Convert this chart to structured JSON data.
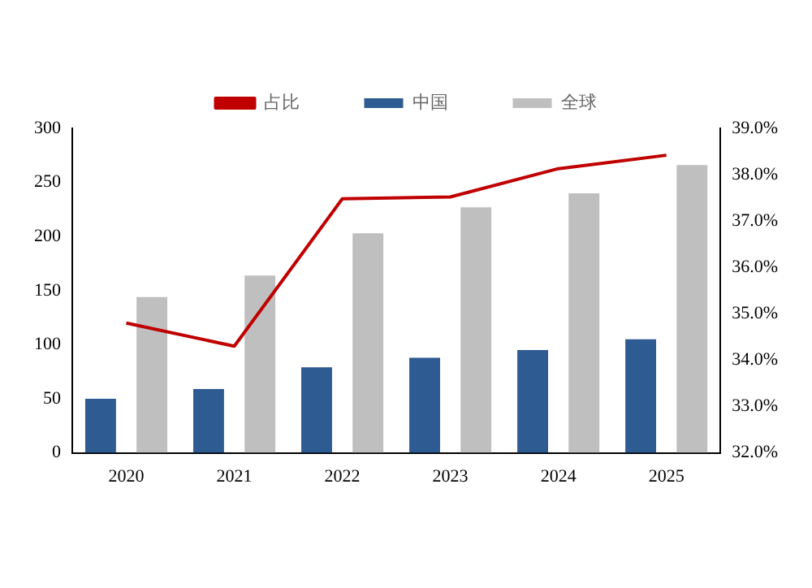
{
  "chart_data": {
    "type": "bar",
    "categories": [
      "2020",
      "2021",
      "2022",
      "2023",
      "2024",
      "2025"
    ],
    "series": [
      {
        "name": "中国",
        "color": "#2f5b93",
        "values": [
          50,
          59,
          79,
          88,
          95,
          105
        ]
      },
      {
        "name": "全球",
        "color": "#bfbfbf",
        "values": [
          144,
          164,
          203,
          227,
          240,
          266
        ]
      },
      {
        "name": "占比",
        "type": "line",
        "axis": "y2",
        "color": "#c00000",
        "values": [
          34.8,
          34.3,
          37.48,
          37.52,
          38.13,
          38.42
        ]
      }
    ],
    "ylim": [
      0,
      300
    ],
    "yticks": [
      0,
      50,
      100,
      150,
      200,
      250,
      300
    ],
    "y2lim": [
      32,
      39
    ],
    "y2ticks": [
      {
        "value": 32,
        "label": "32.0%"
      },
      {
        "value": 33,
        "label": "33.0%"
      },
      {
        "value": 34,
        "label": "34.0%"
      },
      {
        "value": 35,
        "label": "35.0%"
      },
      {
        "value": 36,
        "label": "36.0%"
      },
      {
        "value": 37,
        "label": "37.0%"
      },
      {
        "value": 38,
        "label": "38.0%"
      },
      {
        "value": 39,
        "label": "39.0%"
      }
    ],
    "legend": "top",
    "grid": false,
    "marker": "none"
  }
}
